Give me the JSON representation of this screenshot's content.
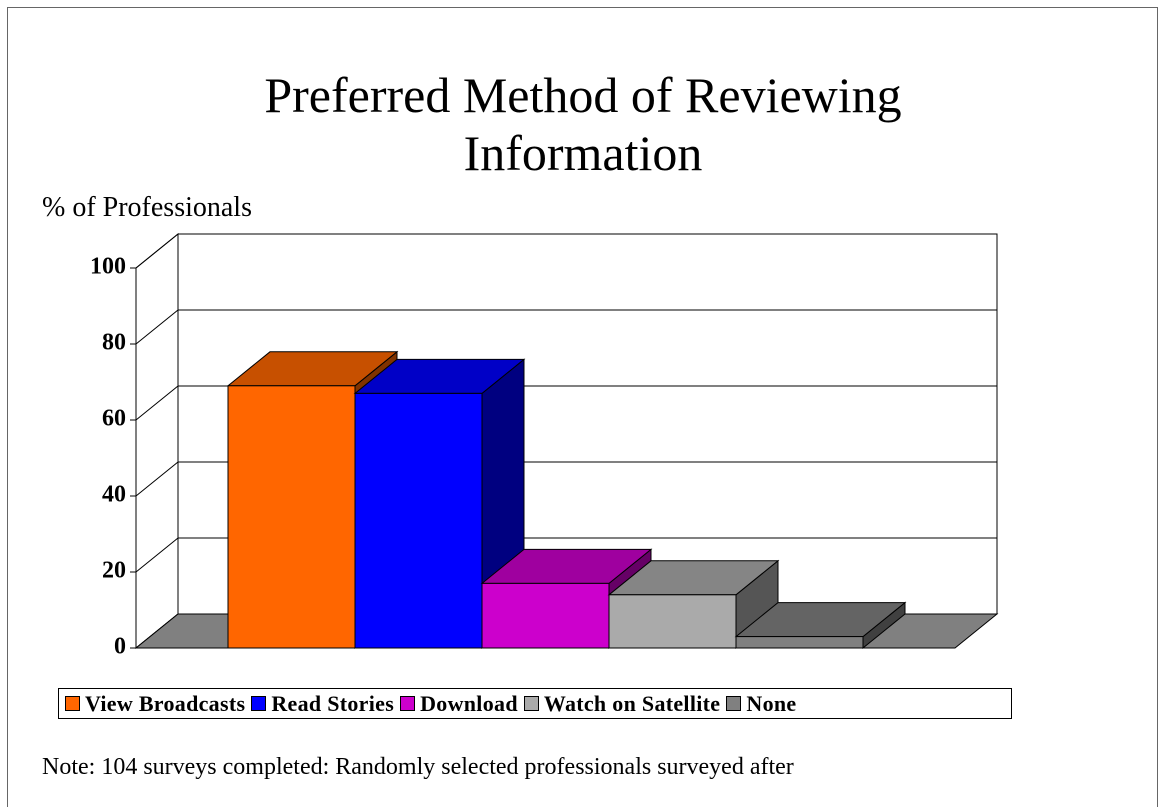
{
  "chart_data": {
    "type": "bar3d",
    "title": "Preferred Method of Reviewing Information",
    "y_label": "% of Professionals",
    "note": "Note: 104 surveys completed:  Randomly selected professionals surveyed after",
    "series": [
      {
        "name": "View Broadcasts",
        "color": "#ff6600",
        "values": [
          69
        ]
      },
      {
        "name": "Read Stories",
        "color": "#0000ff",
        "values": [
          67
        ]
      },
      {
        "name": "Download",
        "color": "#cc00cc",
        "values": [
          17
        ]
      },
      {
        "name": "Watch on Satellite",
        "color": "#aaaaaa",
        "values": [
          14
        ]
      },
      {
        "name": "None",
        "color": "#808080",
        "values": [
          3
        ]
      }
    ],
    "ylim": [
      0,
      100
    ],
    "yticks": [
      0,
      20,
      40,
      60,
      80,
      100
    ],
    "grid": true
  }
}
